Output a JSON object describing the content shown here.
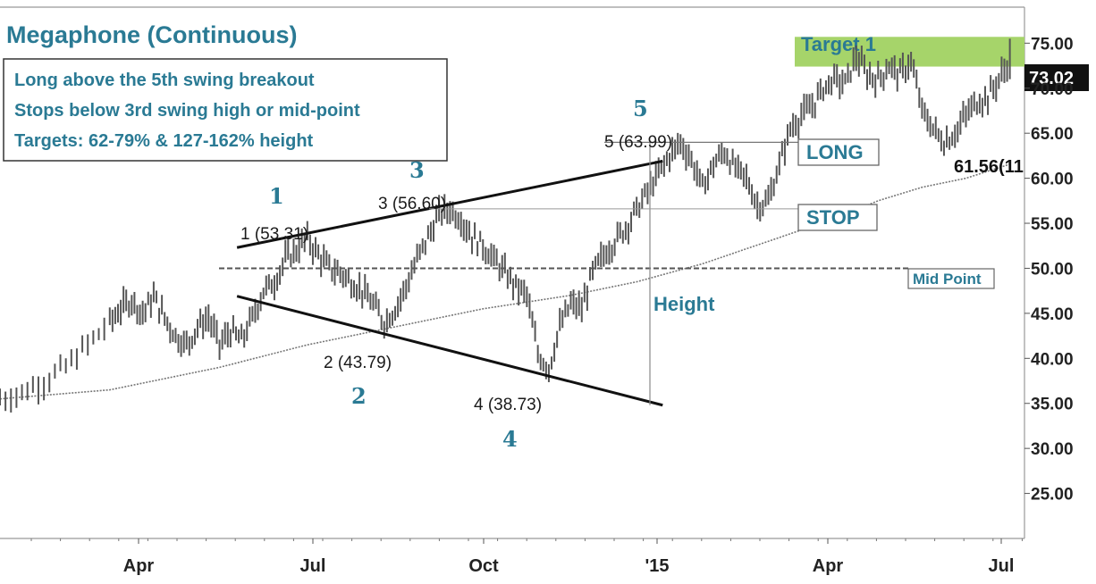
{
  "chart_data": {
    "type": "line",
    "title": "Megaphone (Continuous)",
    "notes": [
      "Long above the 5th swing breakout",
      "Stops below 3rd swing high or mid-point",
      "Targets: 62-79% & 127-162% height"
    ],
    "y_ticks": [
      "75.00",
      "70.00",
      "65.00",
      "60.00",
      "55.00",
      "50.00",
      "45.00",
      "40.00",
      "35.00",
      "30.00",
      "25.00"
    ],
    "ylim": [
      20,
      79
    ],
    "x_ticks": [
      "Apr",
      "Jul",
      "Oct",
      "'15",
      "Apr",
      "Jul"
    ],
    "last_value": "73.02",
    "moving_average_label": "61.56(11",
    "swings": [
      {
        "number": "1",
        "value_label": "1 (53.31)",
        "price": 53.31
      },
      {
        "number": "2",
        "value_label": "2 (43.79)",
        "price": 43.79
      },
      {
        "number": "3",
        "value_label": "3 (56.60)",
        "price": 56.6
      },
      {
        "number": "4",
        "value_label": "4 (38.73)",
        "price": 38.73
      },
      {
        "number": "5",
        "value_label": "5 (63.99)",
        "price": 63.99
      }
    ],
    "levels": {
      "target_label": "Target 1",
      "target_range": [
        72.4,
        75.7
      ],
      "long_label": "LONG",
      "long_price": 63.99,
      "stop_label": "STOP",
      "stop_price": 56.6,
      "midpoint_label": "Mid Point",
      "midpoint_price": 50.0,
      "height_label": "Height"
    },
    "price_path": [
      [
        0,
        35.5
      ],
      [
        2,
        36.2
      ],
      [
        4,
        37.5
      ],
      [
        6,
        39.0
      ],
      [
        8,
        41.5
      ],
      [
        10,
        44.0
      ],
      [
        11,
        45.5
      ],
      [
        12,
        46.5
      ],
      [
        13,
        45.0
      ],
      [
        14,
        46.8
      ],
      [
        15,
        44.5
      ],
      [
        16,
        42.5
      ],
      [
        17,
        41.5
      ],
      [
        18,
        43.5
      ],
      [
        19,
        44.5
      ],
      [
        20,
        41.5
      ],
      [
        21,
        43.0
      ],
      [
        22,
        42.0
      ],
      [
        23,
        44.5
      ],
      [
        24,
        47.5
      ],
      [
        25,
        48.5
      ],
      [
        26,
        51.0
      ],
      [
        27,
        52.0
      ],
      [
        28,
        53.3
      ],
      [
        29,
        51.5
      ],
      [
        30,
        50.0
      ],
      [
        31,
        49.5
      ],
      [
        32,
        48.5
      ],
      [
        33,
        47.5
      ],
      [
        34,
        46.0
      ],
      [
        35,
        44.0
      ],
      [
        36,
        45.5
      ],
      [
        37,
        48.0
      ],
      [
        38,
        51.0
      ],
      [
        39,
        53.5
      ],
      [
        40,
        56.0
      ],
      [
        41,
        56.6
      ],
      [
        42,
        55.5
      ],
      [
        43,
        53.5
      ],
      [
        44,
        52.5
      ],
      [
        45,
        51.0
      ],
      [
        46,
        49.5
      ],
      [
        47,
        48.0
      ],
      [
        48,
        47.0
      ],
      [
        49,
        40.5
      ],
      [
        50,
        38.9
      ],
      [
        51,
        43.5
      ],
      [
        52,
        46.0
      ],
      [
        53,
        45.5
      ],
      [
        54,
        49.5
      ],
      [
        55,
        51.5
      ],
      [
        56,
        53.0
      ],
      [
        57,
        54.5
      ],
      [
        58,
        56.5
      ],
      [
        59,
        58.5
      ],
      [
        60,
        60.5
      ],
      [
        61,
        62.5
      ],
      [
        62,
        64.0
      ],
      [
        63,
        62.0
      ],
      [
        64,
        59.0
      ],
      [
        65,
        61.5
      ],
      [
        66,
        63.0
      ],
      [
        67,
        61.0
      ],
      [
        68,
        60.0
      ],
      [
        69,
        57.0
      ],
      [
        70,
        57.5
      ],
      [
        71,
        61.5
      ],
      [
        72,
        65.5
      ],
      [
        73,
        67.0
      ],
      [
        74,
        68.0
      ],
      [
        75,
        70.0
      ],
      [
        76,
        71.0
      ],
      [
        77,
        70.5
      ],
      [
        78,
        73.5
      ],
      [
        79,
        71.5
      ],
      [
        80,
        71.0
      ],
      [
        81,
        72.5
      ],
      [
        82,
        71.5
      ],
      [
        83,
        73.0
      ],
      [
        84,
        67.5
      ],
      [
        85,
        65.5
      ],
      [
        86,
        64.0
      ],
      [
        87,
        65.0
      ],
      [
        88,
        67.0
      ],
      [
        89,
        68.5
      ],
      [
        90,
        69.0
      ],
      [
        91,
        71.0
      ],
      [
        92,
        73.0
      ]
    ],
    "moving_average_path": [
      [
        0,
        35.5
      ],
      [
        10,
        36.5
      ],
      [
        20,
        39.0
      ],
      [
        28,
        41.5
      ],
      [
        36,
        43.5
      ],
      [
        44,
        45.5
      ],
      [
        52,
        47.0
      ],
      [
        58,
        48.5
      ],
      [
        64,
        50.5
      ],
      [
        70,
        53.0
      ],
      [
        76,
        55.5
      ],
      [
        80,
        57.5
      ],
      [
        84,
        59.0
      ],
      [
        88,
        60.0
      ],
      [
        92,
        61.56
      ]
    ],
    "trendlines": [
      [
        [
          22,
          52.3
        ],
        [
          62,
          61.9
        ]
      ],
      [
        [
          22,
          46.9
        ],
        [
          62,
          34.8
        ]
      ]
    ],
    "height_line": {
      "x": 62,
      "from": 34.8,
      "to": 63.99
    },
    "colors": {
      "accent": "#2a7a94",
      "target_fill": "#a6d46a",
      "price": "#555555",
      "moving_average": "#777777",
      "last_value_bg": "#111111"
    }
  }
}
